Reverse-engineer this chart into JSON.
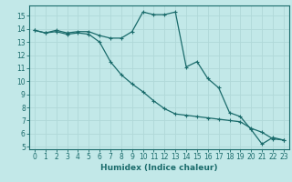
{
  "title": "",
  "xlabel": "Humidex (Indice chaleur)",
  "background_color": "#c2e8e8",
  "line_color": "#1a6b6b",
  "grid_color": "#b0d8d8",
  "xlim": [
    -0.5,
    23.5
  ],
  "ylim": [
    4.8,
    15.8
  ],
  "yticks": [
    5,
    6,
    7,
    8,
    9,
    10,
    11,
    12,
    13,
    14,
    15
  ],
  "xticks": [
    0,
    1,
    2,
    3,
    4,
    5,
    6,
    7,
    8,
    9,
    10,
    11,
    12,
    13,
    14,
    15,
    16,
    17,
    18,
    19,
    20,
    21,
    22,
    23
  ],
  "line1_x": [
    0,
    1,
    2,
    3,
    4,
    5,
    6,
    7,
    8,
    9,
    10,
    11,
    12,
    13,
    14,
    15,
    16,
    17,
    18,
    19,
    20,
    21,
    22,
    23
  ],
  "line1_y": [
    13.9,
    13.7,
    13.9,
    13.7,
    13.8,
    13.8,
    13.5,
    13.3,
    13.3,
    13.8,
    15.3,
    15.1,
    15.1,
    15.3,
    11.1,
    11.5,
    10.2,
    9.5,
    7.6,
    7.3,
    6.3,
    5.2,
    5.7,
    5.5
  ],
  "line2_x": [
    0,
    1,
    2,
    3,
    4,
    5,
    6,
    7,
    8,
    9,
    10,
    11,
    12,
    13,
    14,
    15,
    16,
    17,
    18,
    19,
    20,
    21,
    22,
    23
  ],
  "line2_y": [
    13.9,
    13.7,
    13.8,
    13.6,
    13.7,
    13.6,
    13.0,
    11.5,
    10.5,
    9.8,
    9.2,
    8.5,
    7.9,
    7.5,
    7.4,
    7.3,
    7.2,
    7.1,
    7.0,
    6.9,
    6.4,
    6.1,
    5.6,
    5.5
  ]
}
